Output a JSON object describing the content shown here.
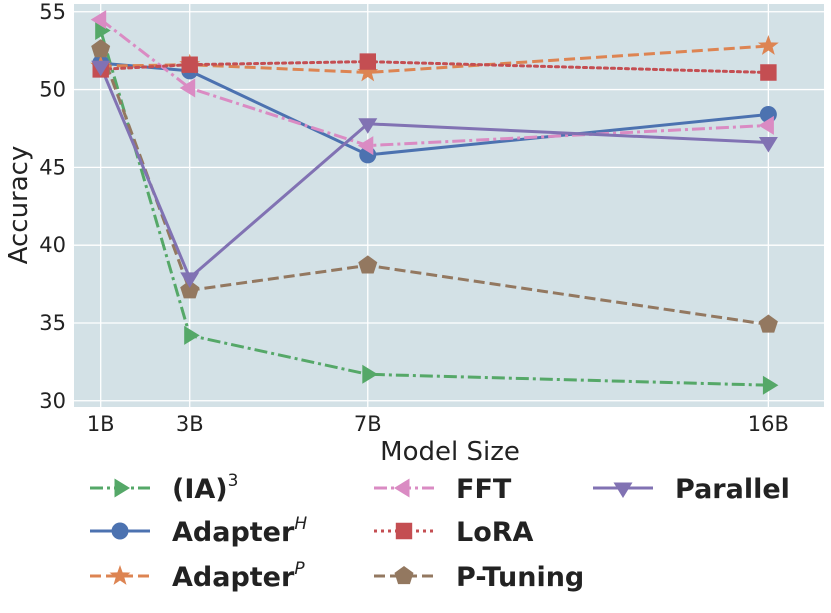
{
  "chart_data": {
    "type": "line",
    "title": "",
    "xlabel": "Model Size",
    "ylabel": "Accuracy",
    "x": [
      1,
      3,
      7,
      16
    ],
    "x_tick_labels": [
      "1B",
      "3B",
      "7B",
      "16B"
    ],
    "xlim": [
      0.4,
      17.25
    ],
    "ylim": [
      29.6,
      55.5
    ],
    "y_ticks": [
      30,
      35,
      40,
      45,
      50,
      55
    ],
    "grid": true,
    "plot_background": "#d3e1e6",
    "legend_location": "below",
    "series": [
      {
        "name": "(IA)",
        "sup": "3",
        "sup_style": "normal",
        "color": "#55a868",
        "dash": "dashdot",
        "marker": "triangle-right",
        "values": [
          53.8,
          34.2,
          31.7,
          31.0
        ]
      },
      {
        "name": "Adapter",
        "sup": "H",
        "sup_style": "italic",
        "color": "#4c72b0",
        "dash": "solid",
        "marker": "circle",
        "values": [
          51.7,
          51.2,
          45.8,
          48.4
        ]
      },
      {
        "name": "Adapter",
        "sup": "P",
        "sup_style": "italic",
        "color": "#dd8452",
        "dash": "dashed",
        "marker": "star",
        "values": [
          51.5,
          51.6,
          51.1,
          52.8
        ]
      },
      {
        "name": "FFT",
        "sup": "",
        "sup_style": "normal",
        "color": "#da8bc3",
        "dash": "dashdot",
        "marker": "triangle-left",
        "values": [
          54.5,
          50.1,
          46.4,
          47.7
        ]
      },
      {
        "name": "LoRA",
        "sup": "",
        "sup_style": "normal",
        "color": "#c44e52",
        "dash": "dotted",
        "marker": "square",
        "values": [
          51.3,
          51.6,
          51.8,
          51.1
        ]
      },
      {
        "name": "P-Tuning",
        "sup": "",
        "sup_style": "normal",
        "color": "#937860",
        "dash": "dashed",
        "marker": "pentagon",
        "values": [
          52.6,
          37.1,
          38.7,
          34.9
        ]
      },
      {
        "name": "Parallel",
        "sup": "",
        "sup_style": "normal",
        "color": "#8172b3",
        "dash": "solid",
        "marker": "triangle-down",
        "values": [
          51.5,
          37.9,
          47.8,
          46.6
        ]
      }
    ]
  }
}
